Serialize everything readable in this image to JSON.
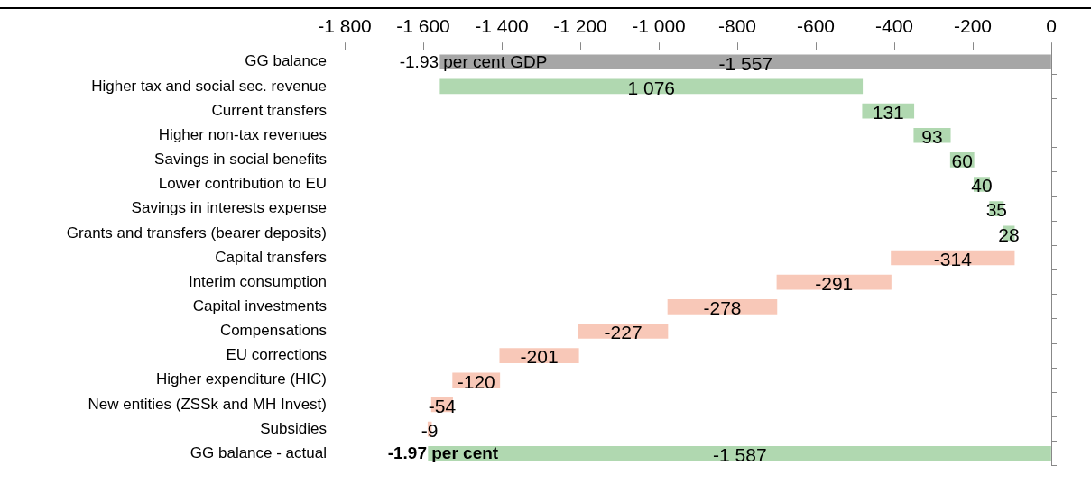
{
  "chart_data": {
    "type": "bar",
    "orientation": "horizontal",
    "categories": [
      "GG balance",
      "Higher tax and social sec. revenue",
      "Current transfers",
      "Higher non-tax revenues",
      "Savings in social benefits",
      "Lower contribution to EU",
      "Savings in interests expense",
      "Grants and transfers (bearer deposits)",
      "Capital transfers",
      "Interim consumption",
      "Capital investments",
      "Compensations",
      "EU corrections",
      "Higher expenditure (HIC)",
      "New entities (ZSSk and MH Invest)",
      "Subsidies",
      "GG balance - actual"
    ],
    "values": [
      -1557,
      1076,
      131,
      93,
      60,
      40,
      35,
      28,
      -314,
      -291,
      -278,
      -227,
      -201,
      -120,
      -54,
      -9,
      -1587
    ],
    "base": [
      0,
      -1557,
      -481,
      -350,
      -257,
      -197,
      -157,
      -122,
      -94,
      -408,
      -699,
      -977,
      -1204,
      -1405,
      -1525,
      -1579,
      0
    ],
    "colors": [
      "#a6a6a6",
      "#b0d8b0",
      "#b0d8b0",
      "#b0d8b0",
      "#b0d8b0",
      "#b0d8b0",
      "#b0d8b0",
      "#b0d8b0",
      "#f8c8b8",
      "#f8c8b8",
      "#f8c8b8",
      "#f8c8b8",
      "#f8c8b8",
      "#f8c8b8",
      "#f8c8b8",
      "#f8c8b8",
      "#b0d8b0"
    ],
    "value_labels": [
      "-1 557",
      "1 076",
      "131",
      "93",
      "60",
      "40",
      "35",
      "28",
      "-314",
      "-291",
      "-278",
      "-227",
      "-201",
      "-120",
      "-54",
      "-9",
      "-1 587"
    ],
    "xlim": [
      -1800,
      0
    ],
    "xticks": [
      {
        "value": -1800,
        "label": "-1 800"
      },
      {
        "value": -1600,
        "label": "-1 600"
      },
      {
        "value": -1400,
        "label": "-1 400"
      },
      {
        "value": -1200,
        "label": "-1 200"
      },
      {
        "value": -1000,
        "label": "-1 000"
      },
      -800,
      -600,
      -400,
      -200,
      0
    ],
    "annotations": [
      {
        "text": "-1.93 per cent GDP",
        "x": -1557,
        "y": "GG balance"
      },
      {
        "text": "-1.97 per cent",
        "x": -1587,
        "y": "GG balance - actual"
      }
    ],
    "grid": false,
    "legend": false
  }
}
